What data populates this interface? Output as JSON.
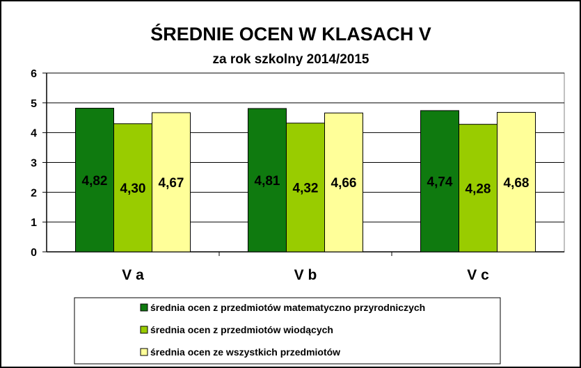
{
  "chart_data": {
    "type": "bar",
    "title": "ŚREDNIE OCEN W KLASACH V",
    "subtitle": "za rok szkolny 2014/2015",
    "categories": [
      "V a",
      "V b",
      "V c"
    ],
    "ylim": [
      0,
      6
    ],
    "yticks": [
      "0",
      "1",
      "2",
      "3",
      "4",
      "5",
      "6"
    ],
    "grid": true,
    "legend_position": "bottom",
    "series": [
      {
        "name": "średnia ocen z przedmiotów matematyczno przyrodniczych",
        "color": "#0f7a0f",
        "values": [
          4.82,
          4.81,
          4.74
        ],
        "labels": [
          "4,82",
          "4,81",
          "4,74"
        ]
      },
      {
        "name": "średnia ocen z przedmiotów wiodących",
        "color": "#99cc00",
        "values": [
          4.3,
          4.32,
          4.28
        ],
        "labels": [
          "4,30",
          "4,32",
          "4,28"
        ]
      },
      {
        "name": "średnia ocen ze wszystkich przedmiotów",
        "color": "#ffff99",
        "values": [
          4.67,
          4.66,
          4.68
        ],
        "labels": [
          "4,67",
          "4,66",
          "4,68"
        ]
      }
    ]
  }
}
